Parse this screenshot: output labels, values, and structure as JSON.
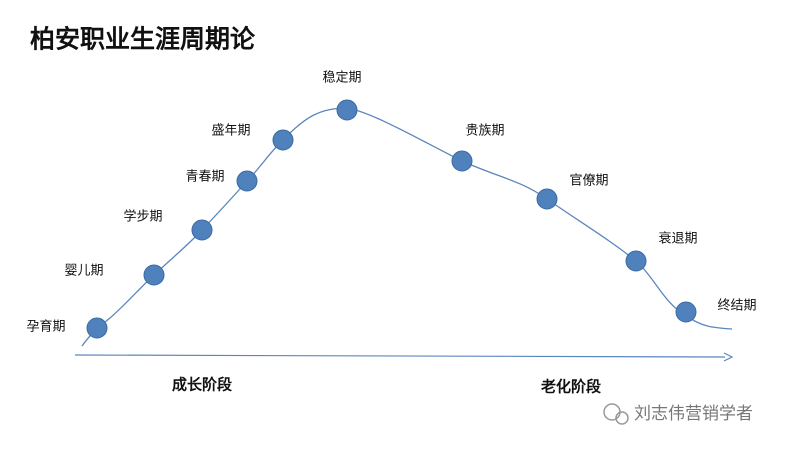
{
  "title": "柏安职业生涯周期论",
  "nodes": [
    {
      "label": "孕育期"
    },
    {
      "label": "婴儿期"
    },
    {
      "label": "学步期"
    },
    {
      "label": "青春期"
    },
    {
      "label": "盛年期"
    },
    {
      "label": "稳定期"
    },
    {
      "label": "贵族期"
    },
    {
      "label": "官僚期"
    },
    {
      "label": "衰退期"
    },
    {
      "label": "终结期"
    }
  ],
  "stages": [
    {
      "label": "成长阶段"
    },
    {
      "label": "老化阶段"
    }
  ],
  "watermark": "刘志伟营销学者"
}
